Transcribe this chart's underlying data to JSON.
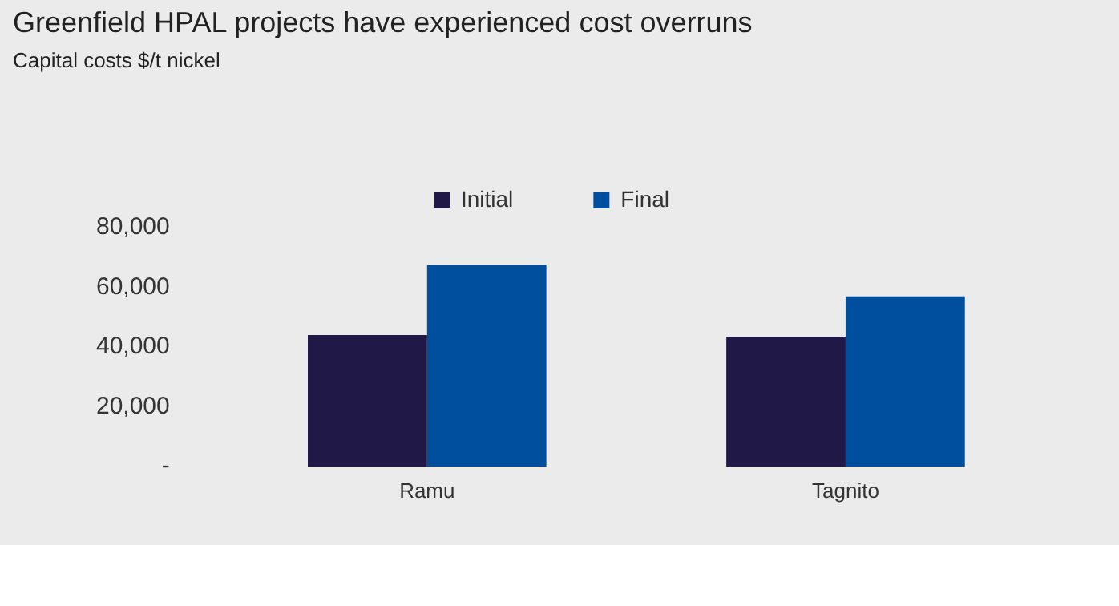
{
  "chart_data": {
    "type": "bar",
    "title": "Greenfield HPAL projects have experienced cost overruns",
    "subtitle": "Capital costs $/t nickel",
    "categories": [
      "Ramu",
      "Tagnito"
    ],
    "series": [
      {
        "name": "Initial",
        "color": "#201846",
        "values": [
          44000,
          43500
        ]
      },
      {
        "name": "Final",
        "color": "#004f9f",
        "values": [
          67500,
          57000
        ]
      }
    ],
    "ylim": [
      0,
      80000
    ],
    "yticks": [
      {
        "value": 0,
        "label": "-"
      },
      {
        "value": 20000,
        "label": "20,000"
      },
      {
        "value": 40000,
        "label": "40,000"
      },
      {
        "value": 60000,
        "label": "60,000"
      },
      {
        "value": 80000,
        "label": "80,000"
      }
    ],
    "grid": false,
    "legend": "top"
  }
}
